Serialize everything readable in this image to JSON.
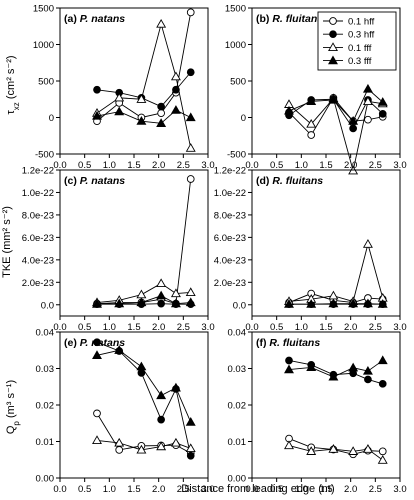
{
  "xlabel": "Distance from leading edge (m)",
  "rows": [
    {
      "ylabel_main": "τ",
      "ylabel_sub": "xz",
      "ylabel_units": " (cm² s⁻²)"
    },
    {
      "ylabel_main": "TKE",
      "ylabel_sub": "",
      "ylabel_units": " (mm² s⁻²)"
    },
    {
      "ylabel_main": "Q",
      "ylabel_sub": "p",
      "ylabel_units": " (m³ s⁻¹)"
    }
  ],
  "legend": [
    "0.1 hff",
    "0.3 hff",
    "0.1 fff",
    "0.3 fff"
  ],
  "chart_data": [
    {
      "type": "line",
      "id": "a",
      "label": "(a)",
      "species": "P. natans",
      "xlim": [
        0.0,
        3.0
      ],
      "ylim": [
        -500,
        1500
      ],
      "xticks": [
        "0.0",
        "0.5",
        "1.0",
        "1.5",
        "2.0",
        "2.5",
        "3.0"
      ],
      "yticks": [
        -500,
        0,
        500,
        1000,
        1500
      ],
      "ytick_labels": [
        "-500",
        "0",
        "500",
        "1000",
        "1500"
      ],
      "grid": false,
      "x": [
        0.75,
        1.2,
        1.65,
        2.05,
        2.35,
        2.65
      ],
      "series": [
        {
          "name": "0.1 hff",
          "values": [
            -50,
            200,
            0,
            60,
            340,
            1440
          ]
        },
        {
          "name": "0.3 hff",
          "values": [
            380,
            340,
            270,
            150,
            380,
            620
          ]
        },
        {
          "name": "0.1 fff",
          "values": [
            60,
            270,
            250,
            1280,
            560,
            -420
          ]
        },
        {
          "name": "0.3 fff",
          "values": [
            20,
            80,
            -50,
            -80,
            100,
            0
          ]
        }
      ]
    },
    {
      "type": "line",
      "id": "b",
      "label": "(b)",
      "species": "R. fluitans",
      "xlim": [
        0.0,
        3.0
      ],
      "ylim": [
        -500,
        1500
      ],
      "xticks": [
        "0.0",
        "0.5",
        "1.0",
        "1.5",
        "2.0",
        "2.5",
        "3.0"
      ],
      "yticks": [
        -500,
        0,
        500,
        1000,
        1500
      ],
      "ytick_labels": [
        "-500",
        "0",
        "500",
        "1000",
        "1500"
      ],
      "grid": false,
      "legend_position": "top-right",
      "x": [
        0.75,
        1.2,
        1.65,
        2.05,
        2.35,
        2.65
      ],
      "series": [
        {
          "name": "0.1 hff",
          "values": [
            70,
            -240,
            270,
            -50,
            -30,
            10
          ]
        },
        {
          "name": "0.3 hff",
          "values": [
            30,
            240,
            250,
            -150,
            240,
            50
          ]
        },
        {
          "name": "0.1 fff",
          "values": [
            180,
            -90,
            260,
            -730,
            220,
            190
          ]
        },
        {
          "name": "0.3 fff",
          "values": [
            90,
            220,
            240,
            -50,
            390,
            210
          ]
        }
      ]
    },
    {
      "type": "line",
      "id": "c",
      "label": "(c)",
      "species": "P. natans",
      "xlim": [
        0.0,
        3.0
      ],
      "ylim": [
        -1e-23,
        1.2e-22
      ],
      "xticks": [
        "0.0",
        "0.5",
        "1.0",
        "1.5",
        "2.0",
        "2.5",
        "3.0"
      ],
      "yticks": [
        0,
        2e-23,
        4e-23,
        6e-23,
        8e-23,
        1e-22,
        1.2e-22
      ],
      "ytick_labels": [
        "0.0",
        "2.0e-23",
        "4.0e-23",
        "6.0e-23",
        "8.0e-23",
        "1.0e-22",
        "1.2e-22"
      ],
      "grid": false,
      "x": [
        0.75,
        1.2,
        1.65,
        2.05,
        2.35,
        2.65
      ],
      "series": [
        {
          "name": "0.1 hff",
          "values": [
            1e-24,
            2e-24,
            2e-24,
            5e-24,
            1e-24,
            1.12e-22
          ]
        },
        {
          "name": "0.3 hff",
          "values": [
            5e-25,
            5e-25,
            5e-25,
            1e-24,
            5e-25,
            5e-25
          ]
        },
        {
          "name": "0.1 fff",
          "values": [
            2e-24,
            4e-24,
            9e-24,
            1.9e-23,
            1e-23,
            1.1e-23
          ]
        },
        {
          "name": "0.3 fff",
          "values": [
            5e-25,
            1e-24,
            2e-24,
            8e-24,
            1e-24,
            2e-24
          ]
        }
      ]
    },
    {
      "type": "line",
      "id": "d",
      "label": "(d)",
      "species": "R. fluitans",
      "xlim": [
        0.0,
        3.0
      ],
      "ylim": [
        -1e-23,
        1.2e-22
      ],
      "xticks": [
        "0.0",
        "0.5",
        "1.0",
        "1.5",
        "2.0",
        "2.5",
        "3.0"
      ],
      "yticks": [
        0,
        2e-23,
        4e-23,
        6e-23,
        8e-23,
        1e-22,
        1.2e-22
      ],
      "ytick_labels": [
        "0.0",
        "2.0e-23",
        "4.0e-23",
        "6.0e-23",
        "8.0e-23",
        "1.0e-22",
        "1.2e-22"
      ],
      "grid": false,
      "x": [
        0.75,
        1.2,
        1.65,
        2.05,
        2.35,
        2.65
      ],
      "series": [
        {
          "name": "0.1 hff",
          "values": [
            2e-24,
            1e-23,
            4e-24,
            2e-24,
            6e-24,
            5e-24
          ]
        },
        {
          "name": "0.3 hff",
          "values": [
            5e-25,
            5e-25,
            5e-25,
            5e-25,
            5e-25,
            5e-25
          ]
        },
        {
          "name": "0.1 fff",
          "values": [
            3e-24,
            5e-24,
            8e-24,
            3e-24,
            5.4e-23,
            6e-24
          ]
        },
        {
          "name": "0.3 fff",
          "values": [
            5e-25,
            5e-25,
            1e-24,
            1e-24,
            1e-24,
            5e-25
          ]
        }
      ]
    },
    {
      "type": "line",
      "id": "e",
      "label": "(e)",
      "species": "P. natans",
      "xlim": [
        0.0,
        3.0
      ],
      "ylim": [
        0.0,
        0.04
      ],
      "xticks": [
        "0.0",
        "0.5",
        "1.0",
        "1.5",
        "2.0",
        "2.5",
        "3.0"
      ],
      "yticks": [
        0,
        0.01,
        0.02,
        0.03,
        0.04
      ],
      "ytick_labels": [
        "0.00",
        "0.01",
        "0.02",
        "0.03",
        "0.04"
      ],
      "grid": false,
      "x": [
        0.75,
        1.2,
        1.65,
        2.05,
        2.35,
        2.65
      ],
      "series": [
        {
          "name": "0.1 hff",
          "values": [
            0.0177,
            0.0077,
            0.0088,
            0.0089,
            0.009,
            0.0068
          ]
        },
        {
          "name": "0.3 hff",
          "values": [
            0.0372,
            0.0348,
            0.0288,
            0.016,
            0.0244,
            0.0061
          ]
        },
        {
          "name": "0.1 fff",
          "values": [
            0.0103,
            0.0096,
            0.0077,
            0.0086,
            0.0096,
            0.0081
          ]
        },
        {
          "name": "0.3 fff",
          "values": [
            0.0336,
            0.035,
            0.0305,
            0.0226,
            0.0247,
            0.0153
          ]
        }
      ]
    },
    {
      "type": "line",
      "id": "f",
      "label": "(f)",
      "species": "R. fluitans",
      "xlim": [
        0.0,
        3.0
      ],
      "ylim": [
        0.0,
        0.04
      ],
      "xticks": [
        "0.0",
        "0.5",
        "1.0",
        "1.5",
        "2.0",
        "2.5",
        "3.0"
      ],
      "yticks": [
        0,
        0.01,
        0.02,
        0.03,
        0.04
      ],
      "ytick_labels": [
        "0.00",
        "0.01",
        "0.02",
        "0.03",
        "0.04"
      ],
      "grid": false,
      "x": [
        0.75,
        1.2,
        1.65,
        2.05,
        2.35,
        2.65
      ],
      "series": [
        {
          "name": "0.1 hff",
          "values": [
            0.0108,
            0.0084,
            0.0078,
            0.0065,
            0.0075,
            0.0073
          ]
        },
        {
          "name": "0.3 hff",
          "values": [
            0.0322,
            0.031,
            0.0283,
            0.0287,
            0.027,
            0.0258
          ]
        },
        {
          "name": "0.1 fff",
          "values": [
            0.0089,
            0.0073,
            0.0079,
            0.0073,
            0.0079,
            0.0049
          ]
        },
        {
          "name": "0.3 fff",
          "values": [
            0.0297,
            0.0303,
            0.0277,
            0.0302,
            0.0293,
            0.0322
          ]
        }
      ]
    }
  ]
}
